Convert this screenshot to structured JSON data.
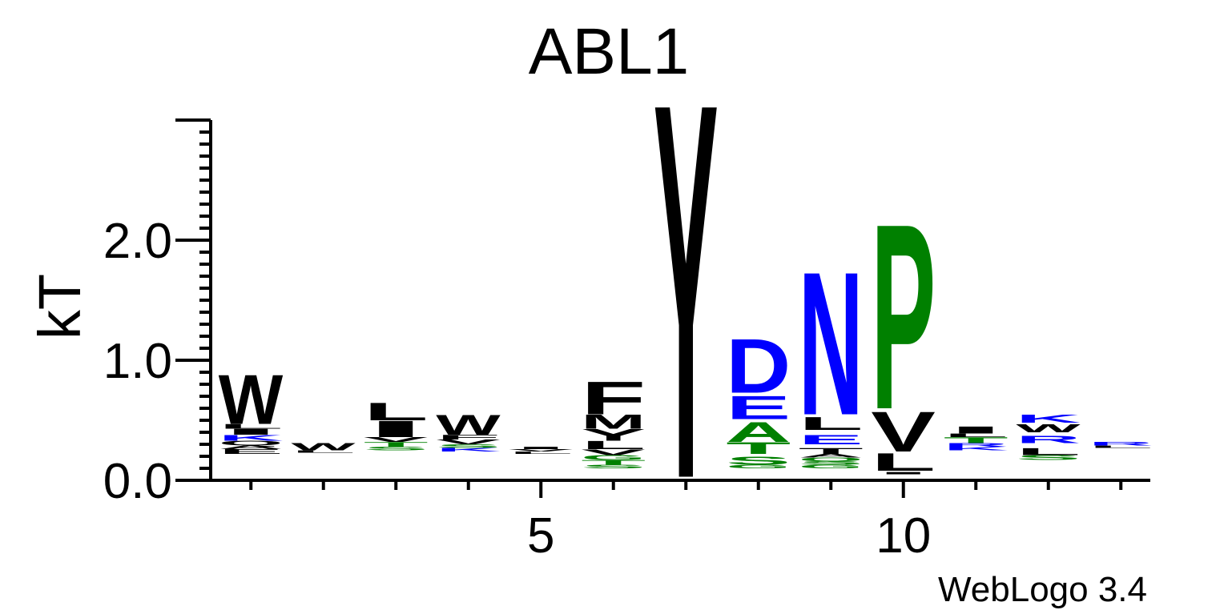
{
  "colors": {
    "hydrophobic": "#000000",
    "basic": "#0000ff",
    "acidic": "#0000ff",
    "polar": "#008000",
    "proline": "#008000",
    "axis": "#000000"
  },
  "chart_data": {
    "type": "sequence-logo",
    "title": "ABL1",
    "ylabel": "kT",
    "xlabel": "",
    "footer": "WebLogo 3.4",
    "ylim": [
      0,
      3.0
    ],
    "yticks": [
      "0.0",
      "1.0",
      "2.0"
    ],
    "ytick_values": [
      0,
      1,
      2
    ],
    "xlim": [
      0.5,
      13.5
    ],
    "xticks": [
      "5",
      "10"
    ],
    "xtick_values": [
      5,
      10
    ],
    "positions": [
      {
        "pos": 1,
        "stack": [
          {
            "letter": "E",
            "bottom": 0.22,
            "height": 0.04,
            "color": "#000000"
          },
          {
            "letter": "A",
            "bottom": 0.26,
            "height": 0.03,
            "color": "#000000"
          },
          {
            "letter": "Q",
            "bottom": 0.29,
            "height": 0.04,
            "color": "#000000"
          },
          {
            "letter": "K",
            "bottom": 0.33,
            "height": 0.05,
            "color": "#0000ff"
          },
          {
            "letter": "I",
            "bottom": 0.38,
            "height": 0.05,
            "color": "#000000"
          },
          {
            "letter": "L",
            "bottom": 0.43,
            "height": 0.04,
            "color": "#000000"
          },
          {
            "letter": "W",
            "bottom": 0.47,
            "height": 0.42,
            "color": "#000000"
          }
        ]
      },
      {
        "pos": 2,
        "stack": [
          {
            "letter": "L",
            "bottom": 0.23,
            "height": 0.02,
            "color": "#000000"
          },
          {
            "letter": "W",
            "bottom": 0.25,
            "height": 0.06,
            "color": "#000000"
          }
        ]
      },
      {
        "pos": 3,
        "stack": [
          {
            "letter": "S",
            "bottom": 0.25,
            "height": 0.03,
            "color": "#008000"
          },
          {
            "letter": "T",
            "bottom": 0.28,
            "height": 0.04,
            "color": "#008000"
          },
          {
            "letter": "V",
            "bottom": 0.32,
            "height": 0.04,
            "color": "#000000"
          },
          {
            "letter": "I",
            "bottom": 0.36,
            "height": 0.14,
            "color": "#000000"
          },
          {
            "letter": "L",
            "bottom": 0.5,
            "height": 0.15,
            "color": "#000000"
          }
        ]
      },
      {
        "pos": 4,
        "stack": [
          {
            "letter": "K",
            "bottom": 0.24,
            "height": 0.03,
            "color": "#0000ff"
          },
          {
            "letter": "S",
            "bottom": 0.27,
            "height": 0.03,
            "color": "#008000"
          },
          {
            "letter": "V",
            "bottom": 0.3,
            "height": 0.04,
            "color": "#000000"
          },
          {
            "letter": "F",
            "bottom": 0.34,
            "height": 0.04,
            "color": "#000000"
          },
          {
            "letter": "W",
            "bottom": 0.38,
            "height": 0.17,
            "color": "#000000"
          }
        ]
      },
      {
        "pos": 5,
        "stack": [
          {
            "letter": "L",
            "bottom": 0.22,
            "height": 0.02,
            "color": "#000000"
          },
          {
            "letter": "V",
            "bottom": 0.24,
            "height": 0.02,
            "color": "#000000"
          },
          {
            "letter": "I",
            "bottom": 0.26,
            "height": 0.02,
            "color": "#000000"
          }
        ]
      },
      {
        "pos": 6,
        "stack": [
          {
            "letter": "S",
            "bottom": 0.1,
            "height": 0.03,
            "color": "#008000"
          },
          {
            "letter": "T",
            "bottom": 0.13,
            "height": 0.04,
            "color": "#008000"
          },
          {
            "letter": "G",
            "bottom": 0.17,
            "height": 0.04,
            "color": "#008000"
          },
          {
            "letter": "V",
            "bottom": 0.21,
            "height": 0.05,
            "color": "#000000"
          },
          {
            "letter": "L",
            "bottom": 0.26,
            "height": 0.07,
            "color": "#000000"
          },
          {
            "letter": "Y",
            "bottom": 0.33,
            "height": 0.1,
            "color": "#000000"
          },
          {
            "letter": "M",
            "bottom": 0.43,
            "height": 0.12,
            "color": "#000000"
          },
          {
            "letter": "F",
            "bottom": 0.55,
            "height": 0.28,
            "color": "#000000"
          }
        ]
      },
      {
        "pos": 7,
        "stack": [
          {
            "letter": "Y",
            "bottom": 0.03,
            "height": 3.2,
            "color": "#000000"
          }
        ]
      },
      {
        "pos": 8,
        "stack": [
          {
            "letter": "G",
            "bottom": 0.1,
            "height": 0.03,
            "color": "#008000"
          },
          {
            "letter": "S",
            "bottom": 0.13,
            "height": 0.07,
            "color": "#008000"
          },
          {
            "letter": "T",
            "bottom": 0.22,
            "height": 0.1,
            "color": "#008000"
          },
          {
            "letter": "A",
            "bottom": 0.32,
            "height": 0.17,
            "color": "#008000"
          },
          {
            "letter": "E",
            "bottom": 0.51,
            "height": 0.2,
            "color": "#0000ff"
          },
          {
            "letter": "D",
            "bottom": 0.73,
            "height": 0.46,
            "color": "#0000ff"
          }
        ]
      },
      {
        "pos": 9,
        "stack": [
          {
            "letter": "G",
            "bottom": 0.1,
            "height": 0.03,
            "color": "#008000"
          },
          {
            "letter": "S",
            "bottom": 0.13,
            "height": 0.03,
            "color": "#008000"
          },
          {
            "letter": "Q",
            "bottom": 0.16,
            "height": 0.03,
            "color": "#008000"
          },
          {
            "letter": "A",
            "bottom": 0.19,
            "height": 0.03,
            "color": "#000000"
          },
          {
            "letter": "T",
            "bottom": 0.22,
            "height": 0.05,
            "color": "#000000"
          },
          {
            "letter": "E",
            "bottom": 0.3,
            "height": 0.08,
            "color": "#0000ff"
          },
          {
            "letter": "L",
            "bottom": 0.42,
            "height": 0.11,
            "color": "#000000"
          },
          {
            "letter": "N",
            "bottom": 0.55,
            "height": 1.22,
            "color": "#0000ff"
          }
        ]
      },
      {
        "pos": 10,
        "stack": [
          {
            "letter": "I",
            "bottom": 0.05,
            "height": 0.02,
            "color": "#000000"
          },
          {
            "letter": "L",
            "bottom": 0.08,
            "height": 0.15,
            "color": "#000000"
          },
          {
            "letter": "V",
            "bottom": 0.24,
            "height": 0.34,
            "color": "#000000"
          },
          {
            "letter": "P",
            "bottom": 0.6,
            "height": 1.58,
            "color": "#008000"
          }
        ]
      },
      {
        "pos": 11,
        "stack": [
          {
            "letter": "K",
            "bottom": 0.25,
            "height": 0.03,
            "color": "#0000ff"
          },
          {
            "letter": "R",
            "bottom": 0.28,
            "height": 0.03,
            "color": "#0000ff"
          },
          {
            "letter": "T",
            "bottom": 0.31,
            "height": 0.05,
            "color": "#008000"
          },
          {
            "letter": "L",
            "bottom": 0.36,
            "height": 0.03,
            "color": "#000000"
          },
          {
            "letter": "I",
            "bottom": 0.39,
            "height": 0.06,
            "color": "#000000"
          }
        ]
      },
      {
        "pos": 12,
        "stack": [
          {
            "letter": "S",
            "bottom": 0.17,
            "height": 0.04,
            "color": "#008000"
          },
          {
            "letter": "L",
            "bottom": 0.21,
            "height": 0.06,
            "color": "#000000"
          },
          {
            "letter": "R",
            "bottom": 0.31,
            "height": 0.06,
            "color": "#0000ff"
          },
          {
            "letter": "W",
            "bottom": 0.4,
            "height": 0.07,
            "color": "#000000"
          },
          {
            "letter": "K",
            "bottom": 0.48,
            "height": 0.07,
            "color": "#0000ff"
          }
        ]
      },
      {
        "pos": 13,
        "stack": [
          {
            "letter": "L",
            "bottom": 0.27,
            "height": 0.02,
            "color": "#000000"
          },
          {
            "letter": "R",
            "bottom": 0.29,
            "height": 0.03,
            "color": "#0000ff"
          }
        ]
      }
    ]
  }
}
